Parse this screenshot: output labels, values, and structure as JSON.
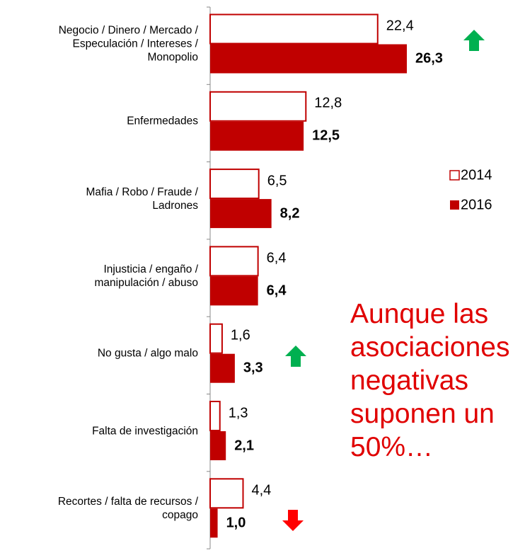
{
  "chart_data": {
    "type": "bar",
    "orientation": "horizontal",
    "categories": [
      "Negocio / Dinero / Mercado /\nEspeculación / Intereses /\nMonopolio",
      "Enfermedades",
      "Mafia / Robo / Fraude /\nLadrones",
      "Injusticia / engaño /\nmanipulación / abuso",
      "No gusta / algo malo",
      "Falta de investigación",
      "Recortes / falta de recursos /\ncopago"
    ],
    "series": [
      {
        "name": "2014",
        "color": "#c00000",
        "fill": "none",
        "values": [
          22.4,
          12.8,
          6.5,
          6.4,
          1.6,
          1.3,
          4.4
        ],
        "value_labels": [
          "22,4",
          "12,8",
          "6,5",
          "6,4",
          "1,6",
          "1,3",
          "4,4"
        ]
      },
      {
        "name": "2016",
        "color": "#c00000",
        "fill": "#c00000",
        "values": [
          26.3,
          12.5,
          8.2,
          6.4,
          3.3,
          2.1,
          1.0
        ],
        "value_labels": [
          "26,3",
          "12,5",
          "8,2",
          "6,4",
          "3,3",
          "2,1",
          "1,0"
        ]
      }
    ],
    "annotation": "Aunque las asociaciones negativas suponen un 50%…",
    "legend": "right"
  }
}
